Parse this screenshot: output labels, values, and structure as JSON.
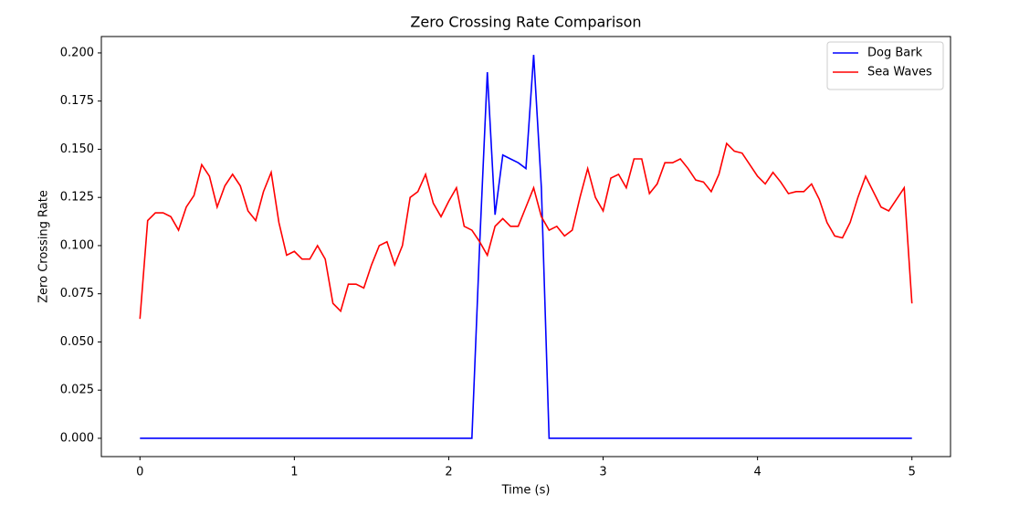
{
  "chart_data": {
    "type": "line",
    "title": "Zero Crossing Rate Comparison",
    "x_label": "Time (s)",
    "y_label": "Zero Crossing Rate",
    "x": [
      0,
      0.05,
      0.1,
      0.15,
      0.2,
      0.25,
      0.3,
      0.35,
      0.4,
      0.45,
      0.5,
      0.55,
      0.6,
      0.65,
      0.7,
      0.75,
      0.8,
      0.85,
      0.9,
      0.95,
      1.0,
      1.05,
      1.1,
      1.15,
      1.2,
      1.25,
      1.3,
      1.35,
      1.4,
      1.45,
      1.5,
      1.55,
      1.6,
      1.65,
      1.7,
      1.75,
      1.8,
      1.85,
      1.9,
      1.95,
      2.0,
      2.05,
      2.1,
      2.15,
      2.2,
      2.25,
      2.3,
      2.35,
      2.4,
      2.45,
      2.5,
      2.55,
      2.6,
      2.65,
      2.7,
      2.75,
      2.8,
      2.85,
      2.9,
      2.95,
      3.0,
      3.05,
      3.1,
      3.15,
      3.2,
      3.25,
      3.3,
      3.35,
      3.4,
      3.45,
      3.5,
      3.55,
      3.6,
      3.65,
      3.7,
      3.75,
      3.8,
      3.85,
      3.9,
      3.95,
      4.0,
      4.05,
      4.1,
      4.15,
      4.2,
      4.25,
      4.3,
      4.35,
      4.4,
      4.45,
      4.5,
      4.55,
      4.6,
      4.65,
      4.7,
      4.75,
      4.8,
      4.85,
      4.9,
      4.95,
      5.0
    ],
    "series": [
      {
        "name": "Dog Bark",
        "color": "#0000ff",
        "values": [
          0,
          0,
          0,
          0,
          0,
          0,
          0,
          0,
          0,
          0,
          0,
          0,
          0,
          0,
          0,
          0,
          0,
          0,
          0,
          0,
          0,
          0,
          0,
          0,
          0,
          0,
          0,
          0,
          0,
          0,
          0,
          0,
          0,
          0,
          0,
          0,
          0,
          0,
          0,
          0,
          0,
          0,
          0,
          0,
          0.1,
          0.19,
          0.116,
          0.147,
          0.145,
          0.143,
          0.14,
          0.199,
          0.13,
          0,
          0,
          0,
          0,
          0,
          0,
          0,
          0,
          0,
          0,
          0,
          0,
          0,
          0,
          0,
          0,
          0,
          0,
          0,
          0,
          0,
          0,
          0,
          0,
          0,
          0,
          0,
          0,
          0,
          0,
          0,
          0,
          0,
          0,
          0,
          0,
          0,
          0,
          0,
          0,
          0,
          0,
          0,
          0,
          0,
          0,
          0,
          0
        ]
      },
      {
        "name": "Sea Waves",
        "color": "#ff0000",
        "values": [
          0.062,
          0.113,
          0.117,
          0.117,
          0.115,
          0.108,
          0.12,
          0.126,
          0.142,
          0.136,
          0.12,
          0.131,
          0.137,
          0.131,
          0.118,
          0.113,
          0.128,
          0.138,
          0.112,
          0.095,
          0.097,
          0.093,
          0.093,
          0.1,
          0.093,
          0.07,
          0.066,
          0.08,
          0.08,
          0.078,
          0.09,
          0.1,
          0.102,
          0.09,
          0.1,
          0.125,
          0.128,
          0.137,
          0.122,
          0.115,
          0.123,
          0.13,
          0.11,
          0.108,
          0.102,
          0.095,
          0.11,
          0.114,
          0.11,
          0.11,
          0.12,
          0.13,
          0.115,
          0.108,
          0.11,
          0.105,
          0.108,
          0.125,
          0.14,
          0.125,
          0.118,
          0.135,
          0.137,
          0.13,
          0.145,
          0.145,
          0.127,
          0.132,
          0.143,
          0.143,
          0.145,
          0.14,
          0.134,
          0.133,
          0.128,
          0.137,
          0.153,
          0.149,
          0.148,
          0.142,
          0.136,
          0.132,
          0.138,
          0.133,
          0.127,
          0.128,
          0.128,
          0.132,
          0.124,
          0.112,
          0.105,
          0.104,
          0.112,
          0.125,
          0.136,
          0.128,
          0.12,
          0.118,
          0.124,
          0.13,
          0.07
        ]
      }
    ],
    "xlim": [
      -0.25,
      5.25
    ],
    "ylim": [
      -0.0095,
      0.2085
    ],
    "xticks": [
      0,
      1,
      2,
      3,
      4,
      5
    ],
    "yticks": [
      {
        "value": 0,
        "label": "0.000"
      },
      {
        "value": 0.025,
        "label": "0.025"
      },
      {
        "value": 0.05,
        "label": "0.050"
      },
      {
        "value": 0.075,
        "label": "0.075"
      },
      {
        "value": 0.1,
        "label": "0.100"
      },
      {
        "value": 0.125,
        "label": "0.125"
      },
      {
        "value": 0.15,
        "label": "0.150"
      },
      {
        "value": 0.175,
        "label": "0.175"
      },
      {
        "value": 0.2,
        "label": "0.200"
      }
    ],
    "legend": "upper right"
  }
}
